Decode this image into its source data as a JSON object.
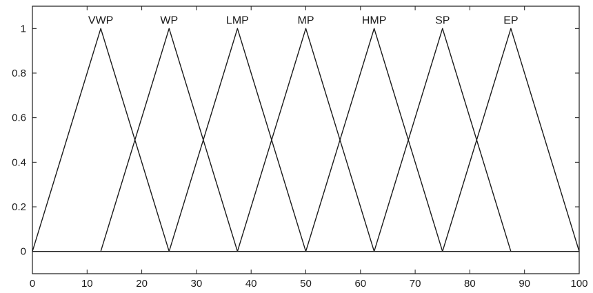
{
  "chart_data": {
    "type": "line",
    "title": "",
    "xlabel": "",
    "ylabel": "",
    "xlim": [
      0,
      100
    ],
    "ylim": [
      -0.1,
      1.1
    ],
    "xticks": [
      0,
      10,
      20,
      30,
      40,
      50,
      60,
      70,
      80,
      90,
      100
    ],
    "yticks": [
      0,
      0.2,
      0.4,
      0.6,
      0.8,
      1
    ],
    "grid": false,
    "legend": "none",
    "series": [
      {
        "name": "VWP",
        "x": [
          0,
          12.5,
          25
        ],
        "y": [
          0,
          1,
          0
        ]
      },
      {
        "name": "WP",
        "x": [
          12.5,
          25,
          37.5
        ],
        "y": [
          0,
          1,
          0
        ]
      },
      {
        "name": "LMP",
        "x": [
          25,
          37.5,
          50
        ],
        "y": [
          0,
          1,
          0
        ]
      },
      {
        "name": "MP",
        "x": [
          37.5,
          50,
          62.5
        ],
        "y": [
          0,
          1,
          0
        ]
      },
      {
        "name": "HMP",
        "x": [
          50,
          62.5,
          75
        ],
        "y": [
          0,
          1,
          0
        ]
      },
      {
        "name": "SP",
        "x": [
          62.5,
          75,
          87.5
        ],
        "y": [
          0,
          1,
          0
        ]
      },
      {
        "name": "EP",
        "x": [
          75,
          87.5,
          100
        ],
        "y": [
          0,
          1,
          0
        ]
      }
    ],
    "baseline": {
      "y": 0
    },
    "colors": {
      "line": "#1a1a1a",
      "axes": "#1a1a1a"
    }
  }
}
